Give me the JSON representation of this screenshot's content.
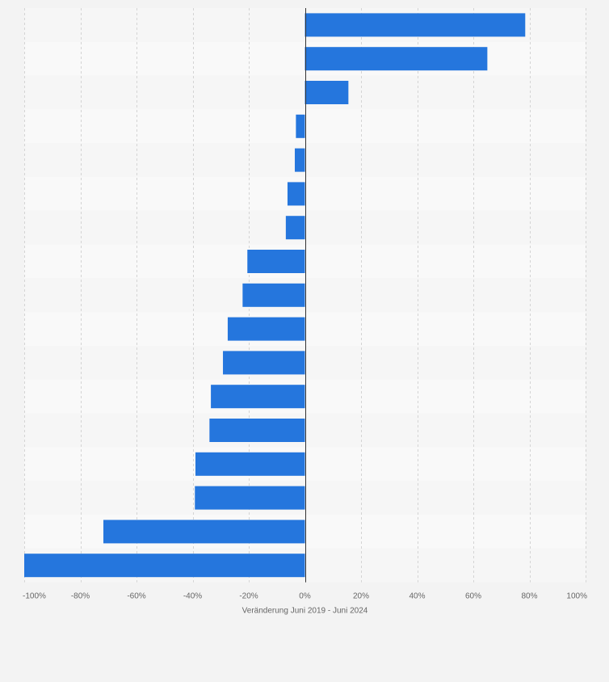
{
  "chart_data": {
    "type": "bar",
    "orientation": "horizontal",
    "categories": [
      "",
      "",
      "",
      "",
      "",
      "",
      "",
      "",
      "",
      "",
      "",
      "",
      "",
      "",
      "",
      "",
      ""
    ],
    "values": [
      78.5,
      65,
      15.5,
      -3.2,
      -3.6,
      -6.2,
      -6.8,
      -20.5,
      -22.2,
      -27.5,
      -29.2,
      -33.5,
      -34,
      -39,
      -39.2,
      -71.8,
      -100
    ],
    "xlabel": "Veränderung Juni 2019 - Juni 2024",
    "ylabel": "",
    "xlim": [
      -100,
      100
    ],
    "x_ticks": [
      -100,
      -80,
      -60,
      -40,
      -20,
      0,
      20,
      40,
      60,
      80,
      100
    ],
    "x_tick_labels": [
      "-100%",
      "-80%",
      "-60%",
      "-40%",
      "-20%",
      "0%",
      "20%",
      "40%",
      "60%",
      "80%",
      "100%"
    ],
    "grid": true,
    "bar_color": "#2576dd",
    "row_colors": [
      "#f6f6f6",
      "#f9f9f9"
    ],
    "background": "#f3f3f3"
  }
}
